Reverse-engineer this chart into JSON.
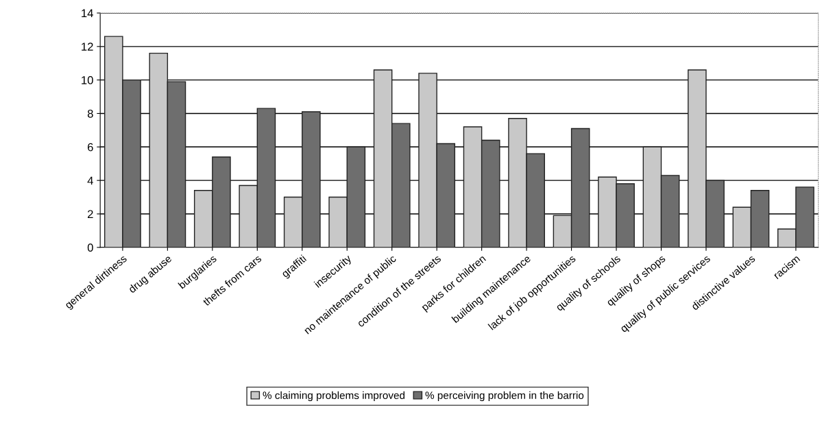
{
  "chart_data": {
    "type": "bar",
    "categories": [
      "general dirtiness",
      "drug abuse",
      "burglaries",
      "thefts from cars",
      "graffiti",
      "insecurity",
      "no maintenance of public",
      "condition of the streets",
      "parks for children",
      "building maintenance",
      "lack of job opportunities",
      "quality of schools",
      "quality of shops",
      "quality of public services",
      "distinctive values",
      "racism"
    ],
    "series": [
      {
        "name": "% claiming problems improved",
        "color": "#c8c8c8",
        "values": [
          12.6,
          11.6,
          3.4,
          3.7,
          3.0,
          3.0,
          10.6,
          10.4,
          7.2,
          7.7,
          1.9,
          4.2,
          6.0,
          10.6,
          2.4,
          1.1
        ]
      },
      {
        "name": "% perceiving problem in the barrio",
        "color": "#6e6e6e",
        "values": [
          10.0,
          9.9,
          5.4,
          8.3,
          8.1,
          6.0,
          7.4,
          6.2,
          6.4,
          5.6,
          7.1,
          3.8,
          4.3,
          4.0,
          3.4,
          3.6
        ]
      }
    ],
    "ylim": [
      0,
      14
    ],
    "yticks": [
      0,
      2,
      4,
      6,
      8,
      10,
      12,
      14
    ],
    "grid": "y",
    "legend": "bottom"
  }
}
